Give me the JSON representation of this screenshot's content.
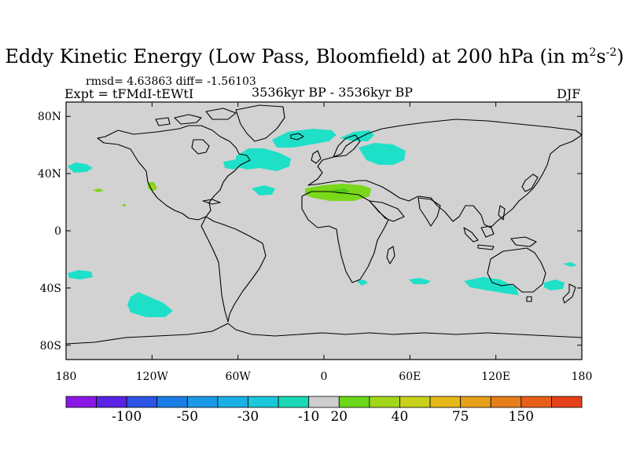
{
  "title": {
    "main": "Eddy Kinetic Energy (Low Pass, Bloomfield) at 200 hPa (in m",
    "sup1": "2",
    "mid": "s",
    "sup2": "-2",
    "end": ")"
  },
  "stats": "rmsd= 4.63863 diff= -1.56103",
  "expt": "Expt = tFMdI-tEWtI",
  "period": "3536kyr BP - 3536kyr BP",
  "season": "DJF",
  "lat_labels": [
    "80N",
    "40N",
    "0",
    "40S",
    "80S"
  ],
  "lon_labels": [
    "180",
    "120W",
    "60W",
    "0",
    "60E",
    "120E",
    "180"
  ],
  "colorbar": {
    "colors": [
      "#8b17e6",
      "#5a22e6",
      "#2e54e6",
      "#1a7de6",
      "#1a9ae6",
      "#1ab0e6",
      "#1ac8d8",
      "#1ad8b8",
      "#cfcfcf",
      "#6cd61a",
      "#a2d61a",
      "#c8d01a",
      "#e6b81a",
      "#e6a01a",
      "#e67f1a",
      "#e6601a",
      "#e6401a"
    ],
    "labels": [
      "-100",
      "-50",
      "-30",
      "-10",
      "20",
      "40",
      "75",
      "150"
    ]
  },
  "fields": {
    "background": "#d2d2d2",
    "cyan": "#1ee0c8",
    "green": "#7ad81a",
    "green_dark": "#52c81a",
    "orange": "#e6b41a"
  }
}
